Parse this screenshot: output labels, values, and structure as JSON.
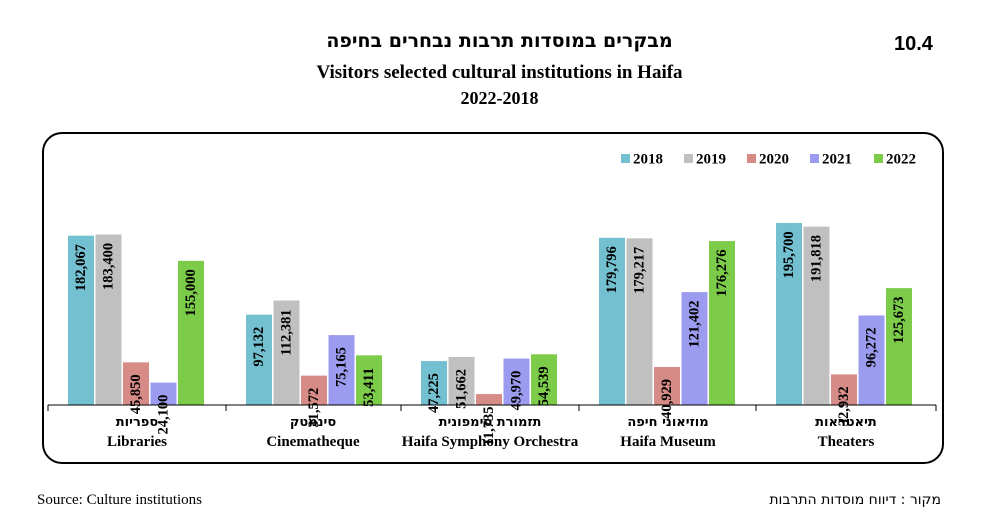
{
  "header": {
    "number": "10.4",
    "title_he": "מבקרים במוסדות תרבות נבחרים בחיפה",
    "title_en": "Visitors selected cultural institutions in Haifa",
    "years": "2022-2018"
  },
  "footer": {
    "source_en": "Source: Culture institutions",
    "source_he": "מקור : דיווח מוסדות התרבות"
  },
  "chart_data": {
    "type": "bar",
    "title": "Visitors selected cultural institutions in Haifa",
    "legend_position": "top-right",
    "grid": false,
    "ylim": [
      0,
      200000
    ],
    "categories": [
      {
        "he": "ספריות",
        "en": "Libraries"
      },
      {
        "he": "סינמטק",
        "en": "Cinematheque"
      },
      {
        "he": "תזמורת סימפונית",
        "en": "Haifa Symphony Orchestra"
      },
      {
        "he": "מוזיאוני חיפה",
        "en": "Haifa Museum"
      },
      {
        "he": "תיאטראות",
        "en": "Theaters"
      }
    ],
    "series": [
      {
        "name": "2018",
        "color": "#72c0d0",
        "values": [
          182067,
          97132,
          47225,
          179796,
          195700
        ],
        "labels": [
          "182,067",
          "97,132",
          "47,225",
          "179,796",
          "195,700"
        ]
      },
      {
        "name": "2019",
        "color": "#c0c0c0",
        "values": [
          183400,
          112381,
          51662,
          179217,
          191818
        ],
        "labels": [
          "183,400",
          "112,381",
          "51,662",
          "179,217",
          "191,818"
        ]
      },
      {
        "name": "2020",
        "color": "#d68b86",
        "values": [
          45850,
          31572,
          11735,
          40929,
          32932
        ],
        "labels": [
          "45,850",
          "31,572",
          "11,735",
          "40,929",
          "32,932"
        ]
      },
      {
        "name": "2021",
        "color": "#9b9bf0",
        "values": [
          24100,
          75165,
          49970,
          121402,
          96272
        ],
        "labels": [
          "24,100",
          "75,165",
          "49,970",
          "121,402",
          "96,272"
        ]
      },
      {
        "name": "2022",
        "color": "#7ccc4a",
        "values": [
          155000,
          53411,
          54539,
          176276,
          125673
        ],
        "labels": [
          "155,000",
          "53,411",
          "54,539",
          "176,276",
          "125,673"
        ]
      }
    ]
  }
}
